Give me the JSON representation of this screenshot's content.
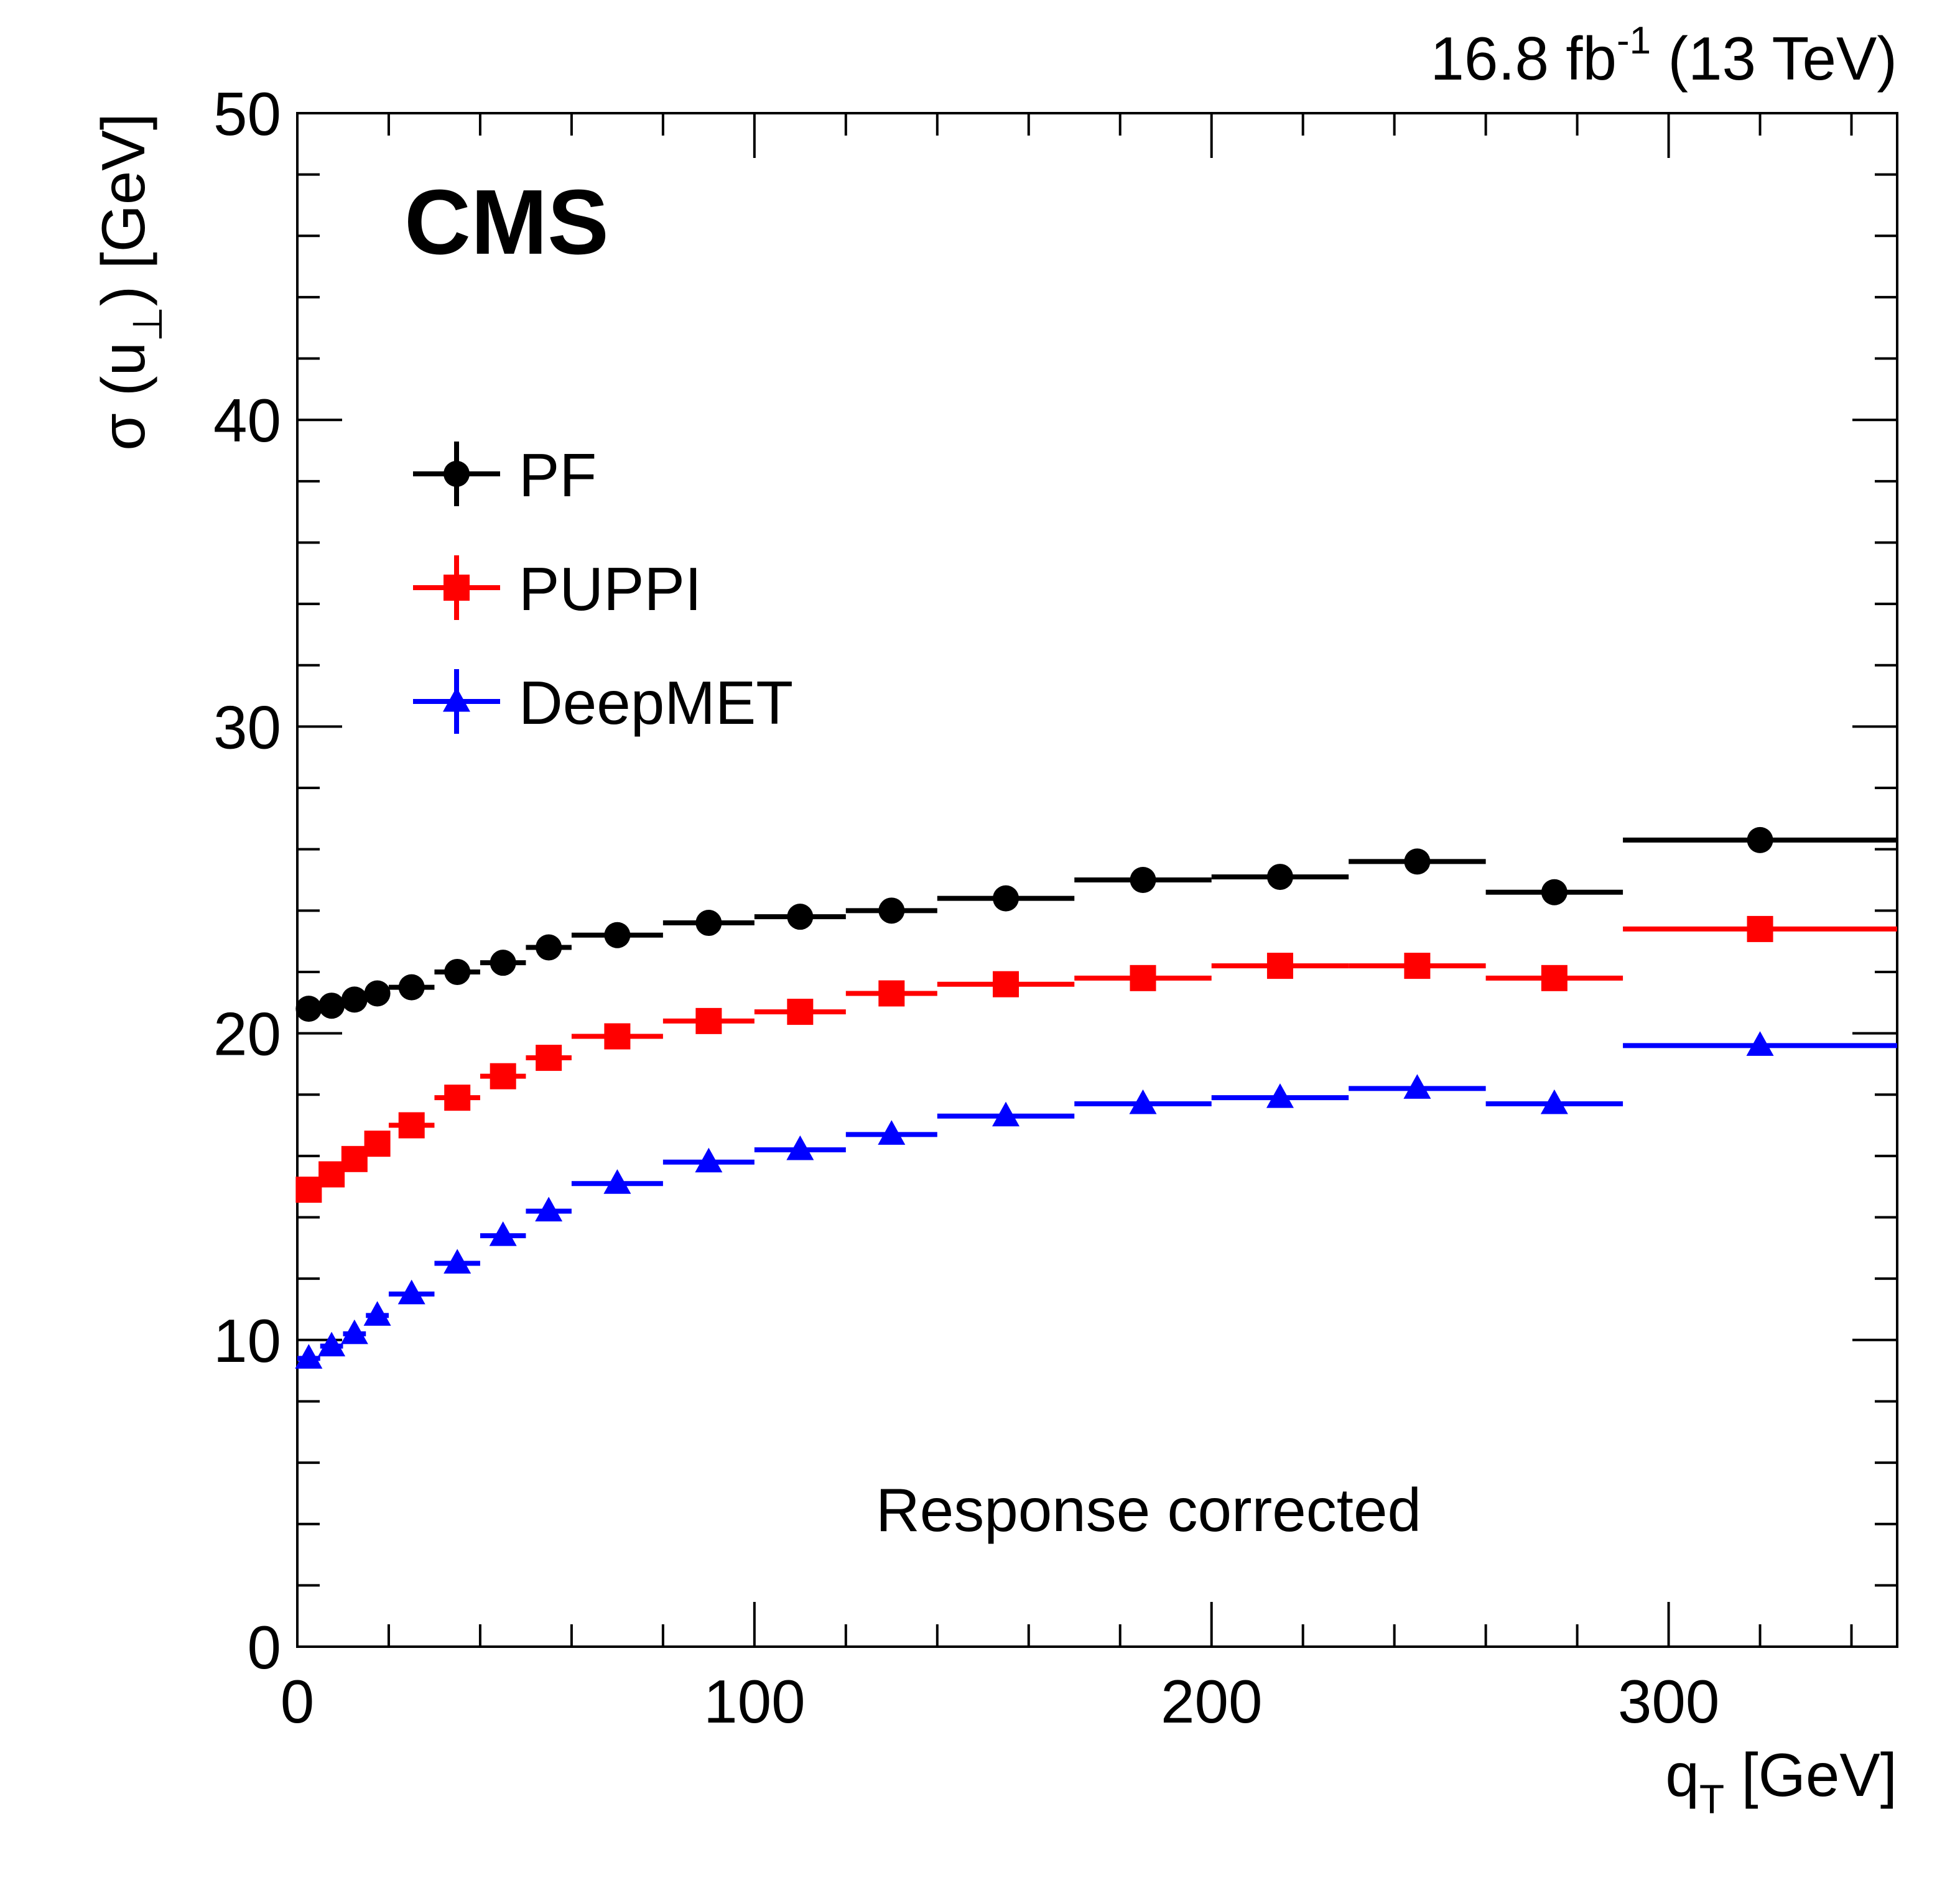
{
  "header": {
    "lumi_value": "16.8 fb",
    "lumi_exp": "-1",
    "energy": " (13 TeV)"
  },
  "experiment_label": "CMS",
  "annotation": "Response corrected",
  "chart_data": {
    "type": "scatter",
    "title": "",
    "xlabel": {
      "symbol": "q",
      "sub": "T",
      "unit": " [GeV]"
    },
    "ylabel": {
      "prefix": "σ (u",
      "sub": "⊥",
      "suffix": ") [GeV]"
    },
    "xlim": [
      0,
      350
    ],
    "ylim": [
      0,
      50
    ],
    "x_ticks": [
      0,
      100,
      200,
      300
    ],
    "y_ticks": [
      0,
      10,
      20,
      30,
      40,
      50
    ],
    "grid": false,
    "legend_position": "top-left",
    "bins": [
      [
        0,
        5
      ],
      [
        5,
        10
      ],
      [
        10,
        15
      ],
      [
        15,
        20
      ],
      [
        20,
        30
      ],
      [
        30,
        40
      ],
      [
        40,
        50
      ],
      [
        50,
        60
      ],
      [
        60,
        80
      ],
      [
        80,
        100
      ],
      [
        100,
        120
      ],
      [
        120,
        140
      ],
      [
        140,
        170
      ],
      [
        170,
        200
      ],
      [
        200,
        230
      ],
      [
        230,
        260
      ],
      [
        260,
        290
      ],
      [
        290,
        350
      ]
    ],
    "x": [
      2.5,
      7.5,
      12.5,
      17.5,
      25,
      35,
      45,
      55,
      70,
      90,
      110,
      130,
      155,
      185,
      215,
      245,
      275,
      320
    ],
    "series": [
      {
        "name": "PF",
        "color": "#000000",
        "marker": "circle",
        "values": [
          20.8,
          20.9,
          21.1,
          21.3,
          21.5,
          22.0,
          22.3,
          22.8,
          23.2,
          23.6,
          23.8,
          24.0,
          24.4,
          25.0,
          25.1,
          25.6,
          24.6,
          26.3
        ]
      },
      {
        "name": "PUPPI",
        "color": "#ff0000",
        "marker": "square",
        "values": [
          14.9,
          15.4,
          15.9,
          16.4,
          17.0,
          17.9,
          18.6,
          19.2,
          19.9,
          20.4,
          20.7,
          21.3,
          21.6,
          21.8,
          22.2,
          22.2,
          21.8,
          23.4
        ]
      },
      {
        "name": "DeepMET",
        "color": "#0000ff",
        "marker": "triangle",
        "values": [
          9.4,
          9.8,
          10.2,
          10.8,
          11.5,
          12.5,
          13.4,
          14.2,
          15.1,
          15.8,
          16.2,
          16.7,
          17.3,
          17.7,
          17.9,
          18.2,
          17.7,
          19.6
        ]
      }
    ]
  }
}
